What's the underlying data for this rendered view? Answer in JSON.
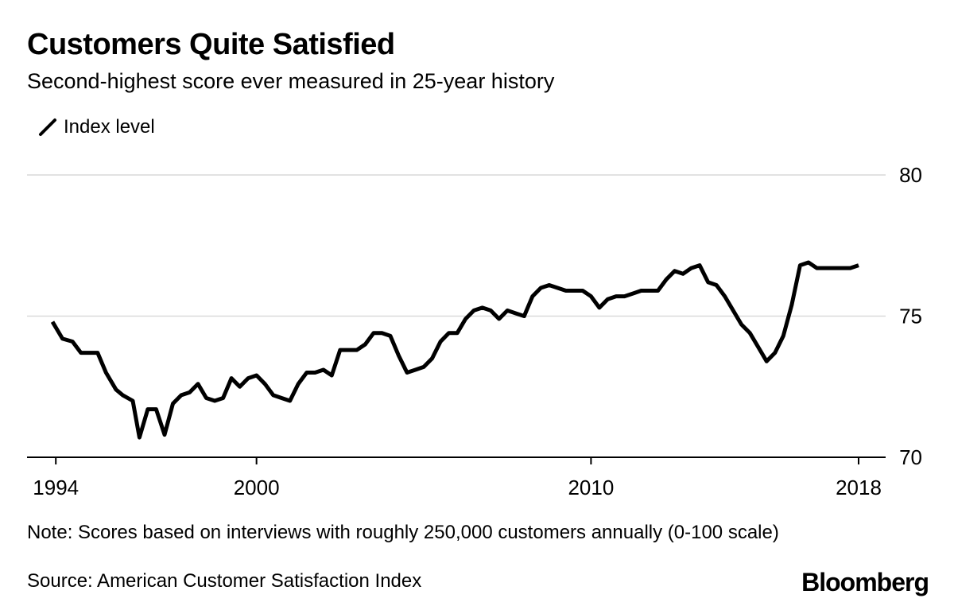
{
  "header": {
    "title": "Customers Quite Satisfied",
    "subtitle": "Second-highest score ever measured in 25-year history"
  },
  "legend": {
    "label": "Index level"
  },
  "footer": {
    "note": "Note: Scores based on interviews with roughly 250,000 customers annually (0-100 scale)",
    "source": "Source: American Customer Satisfaction Index",
    "brand": "Bloomberg"
  },
  "colors": {
    "line": "#000000",
    "grid": "#d9d9d9",
    "axis": "#000000",
    "text": "#000000"
  },
  "chart_data": {
    "type": "line",
    "title": "Customers Quite Satisfied",
    "xlabel": "",
    "ylabel": "",
    "xlim": [
      1993.9,
      2018.0
    ],
    "ylim": [
      70,
      80
    ],
    "yticks": [
      70,
      75,
      80
    ],
    "xticks": [
      {
        "value": 1994,
        "label": "1994"
      },
      {
        "value": 2000,
        "label": "2000"
      },
      {
        "value": 2010,
        "label": "2010"
      },
      {
        "value": 2018,
        "label": "2018"
      }
    ],
    "grid": true,
    "legend_position": "top-left",
    "series": [
      {
        "name": "Index level",
        "x": [
          1993.9,
          1994.2,
          1994.5,
          1994.75,
          1995.0,
          1995.25,
          1995.5,
          1995.8,
          1996.0,
          1996.3,
          1996.5,
          1996.75,
          1997.0,
          1997.25,
          1997.5,
          1997.75,
          1998.0,
          1998.25,
          1998.5,
          1998.75,
          1999.0,
          1999.25,
          1999.5,
          1999.75,
          2000.0,
          2000.25,
          2000.5,
          2000.75,
          2001.0,
          2001.25,
          2001.5,
          2001.75,
          2002.0,
          2002.25,
          2002.5,
          2002.75,
          2003.0,
          2003.25,
          2003.5,
          2003.75,
          2004.0,
          2004.25,
          2004.5,
          2004.75,
          2005.0,
          2005.25,
          2005.5,
          2005.75,
          2006.0,
          2006.25,
          2006.5,
          2006.75,
          2007.0,
          2007.25,
          2007.5,
          2007.75,
          2008.0,
          2008.25,
          2008.5,
          2008.75,
          2009.0,
          2009.25,
          2009.5,
          2009.75,
          2010.0,
          2010.25,
          2010.5,
          2010.75,
          2011.0,
          2011.25,
          2011.5,
          2011.75,
          2012.0,
          2012.25,
          2012.5,
          2012.75,
          2013.0,
          2013.25,
          2013.5,
          2013.75,
          2014.0,
          2014.25,
          2014.5,
          2014.75,
          2015.0,
          2015.25,
          2015.5,
          2015.75,
          2016.0,
          2016.25,
          2016.5,
          2016.75,
          2017.0,
          2017.25,
          2017.5,
          2017.75,
          2018.0
        ],
        "values": [
          74.8,
          74.2,
          74.1,
          73.7,
          73.7,
          73.7,
          73.0,
          72.4,
          72.2,
          72.0,
          70.7,
          71.7,
          71.7,
          70.8,
          71.9,
          72.2,
          72.3,
          72.6,
          72.1,
          72.0,
          72.1,
          72.8,
          72.5,
          72.8,
          72.9,
          72.6,
          72.2,
          72.1,
          72.0,
          72.6,
          73.0,
          73.0,
          73.1,
          72.9,
          73.8,
          73.8,
          73.8,
          74.0,
          74.4,
          74.4,
          74.3,
          73.6,
          73.0,
          73.1,
          73.2,
          73.5,
          74.1,
          74.4,
          74.4,
          74.9,
          75.2,
          75.3,
          75.2,
          74.9,
          75.2,
          75.1,
          75.0,
          75.7,
          76.0,
          76.1,
          76.0,
          75.9,
          75.9,
          75.9,
          75.7,
          75.3,
          75.6,
          75.7,
          75.7,
          75.8,
          75.9,
          75.9,
          75.9,
          76.3,
          76.6,
          76.5,
          76.7,
          76.8,
          76.2,
          76.1,
          75.7,
          75.2,
          74.7,
          74.4,
          73.9,
          73.4,
          73.7,
          74.3,
          75.4,
          76.8,
          76.9,
          76.7,
          76.7,
          76.7,
          76.7,
          76.7,
          76.8
        ]
      }
    ]
  }
}
